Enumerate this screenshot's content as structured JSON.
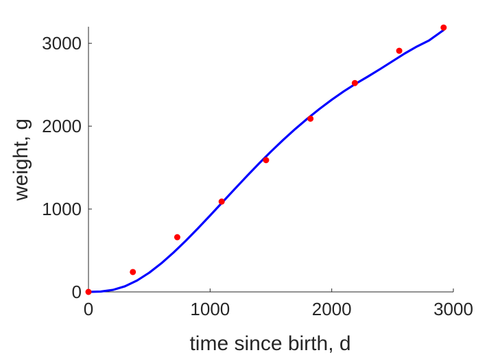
{
  "chart_data": {
    "type": "scatter",
    "xlabel": "time since birth, d",
    "ylabel": "weight, g",
    "xlim": [
      0,
      3000
    ],
    "ylim": [
      0,
      3200
    ],
    "xticks": [
      0,
      1000,
      2000,
      3000
    ],
    "yticks": [
      0,
      1000,
      2000,
      3000
    ],
    "grid": false,
    "series": [
      {
        "kind": "points",
        "color": "#ff0000",
        "x": [
          0,
          365,
          730,
          1095,
          1460,
          1825,
          2190,
          2555,
          2920
        ],
        "y": [
          0,
          240,
          660,
          1090,
          1590,
          2090,
          2520,
          2910,
          3190
        ]
      },
      {
        "kind": "line",
        "color": "#0000ff",
        "x": [
          0,
          100,
          200,
          300,
          400,
          500,
          600,
          700,
          800,
          900,
          1000,
          1100,
          1200,
          1300,
          1400,
          1500,
          1600,
          1700,
          1800,
          1900,
          2000,
          2100,
          2200,
          2300,
          2400,
          2500,
          2600,
          2700,
          2800,
          2920
        ],
        "y": [
          0,
          4,
          24,
          68,
          138,
          232,
          346,
          476,
          617,
          767,
          922,
          1080,
          1238,
          1394,
          1546,
          1693,
          1833,
          1966,
          2091,
          2209,
          2319,
          2421,
          2515,
          2601,
          2691,
          2784,
          2877,
          2961,
          3034,
          3160
        ]
      }
    ]
  }
}
